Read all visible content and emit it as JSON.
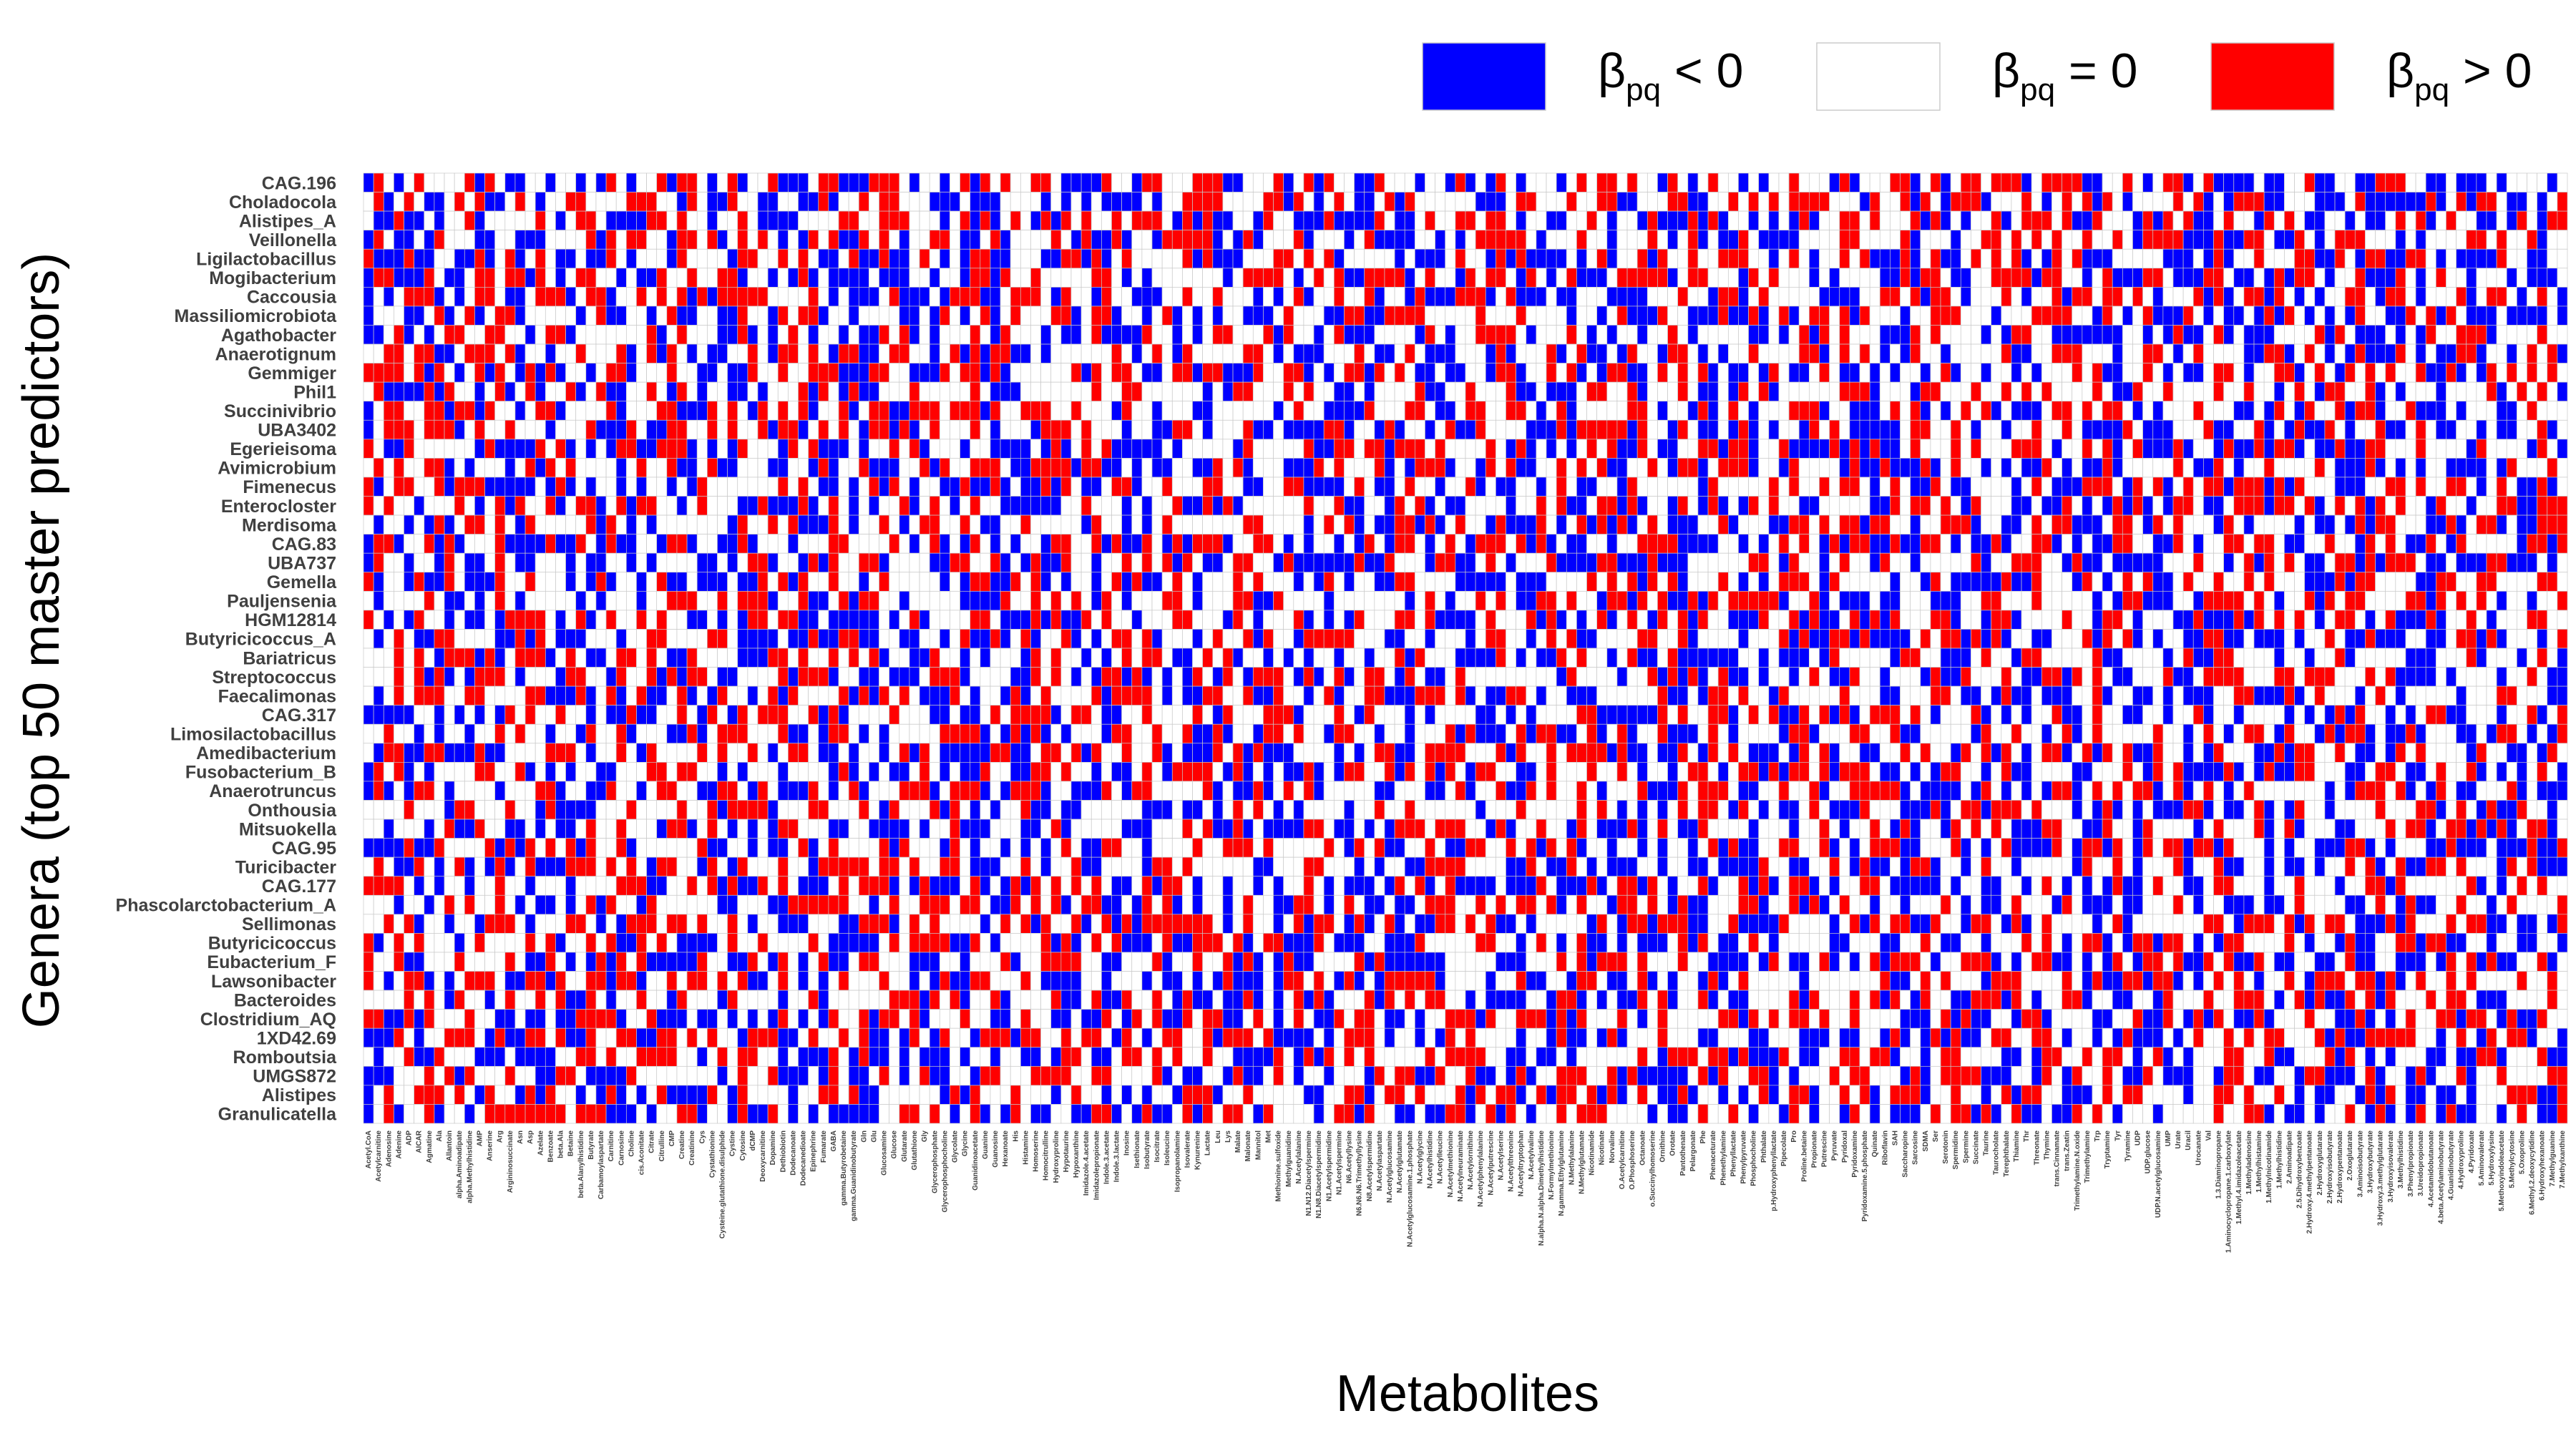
{
  "chart_data": {
    "type": "heatmap",
    "title": "",
    "xlabel": "Metabolites",
    "ylabel": "Genera (top 50 master predictors)",
    "legend": [
      {
        "symbol": "β",
        "sub": "pq",
        "rel": " < 0",
        "value": -1,
        "color": "#0000ff"
      },
      {
        "symbol": "β",
        "sub": "pq",
        "rel": " = 0",
        "value": 0,
        "color": "#ffffff"
      },
      {
        "symbol": "β",
        "sub": "pq",
        "rel": " > 0",
        "value": 1,
        "color": "#ff0000"
      }
    ],
    "legend_position": "top-right",
    "grid": true,
    "rows": [
      "CAG.196",
      "Choladocola",
      "Alistipes_A",
      "Veillonella",
      "Ligilactobacillus",
      "Mogibacterium",
      "Caccousia",
      "Massiliomicrobiota",
      "Agathobacter",
      "Anaerotignum",
      "Gemmiger",
      "Phil1",
      "Succinivibrio",
      "UBA3402",
      "Egerieisoma",
      "Avimicrobium",
      "Fimenecus",
      "Enterocloster",
      "Merdisoma",
      "CAG.83",
      "UBA737",
      "Gemella",
      "Pauljensenia",
      "HGM12814",
      "Butyricicoccus_A",
      "Bariatricus",
      "Streptococcus",
      "Faecalimonas",
      "CAG.317",
      "Limosilactobacillus",
      "Amedibacterium",
      "Fusobacterium_B",
      "Anaerotruncus",
      "Onthousia",
      "Mitsuokella",
      "CAG.95",
      "Turicibacter",
      "CAG.177",
      "Phascolarctobacterium_A",
      "Sellimonas",
      "Butyricicoccus",
      "Eubacterium_F",
      "Lawsonibacter",
      "Bacteroides",
      "Clostridium_AQ",
      "1XD42.69",
      "Romboutsia",
      "UMGS872",
      "Alistipes",
      "Granulicatella"
    ],
    "columns": [
      "Acetyl.CoA",
      "Acetylcarnitine",
      "Adenosine",
      "Adenine",
      "ADP",
      "AICAR",
      "Agmatine",
      "Ala",
      "Allantoin",
      "alpha.Aminoadipate",
      "alpha.Methylhistidine",
      "AMP",
      "Anserine",
      "Arg",
      "Argininosuccinate",
      "Asn",
      "Asp",
      "Azelate",
      "Benzoate",
      "beta.Ala",
      "Betaine",
      "beta.Alanylhistidine",
      "Butyrate",
      "Carbamoylaspartate",
      "Carnitine",
      "Carnosine",
      "Choline",
      "cis.Aconitate",
      "Citrate",
      "Citrulline",
      "CMP",
      "Creatine",
      "Creatinine",
      "Cys",
      "Cystathionine",
      "Cysteine.glutathione.disulphide",
      "Cystine",
      "Cytosine",
      "dCMP",
      "Deoxycarnitine",
      "Dopamine",
      "Dethiobiotin",
      "Dodecanoate",
      "Dodecanedioate",
      "Epinephrine",
      "Fumarate",
      "GABA",
      "gamma.Butyrobetaine",
      "gamma.Guanidinobutyrate",
      "Gln",
      "Glu",
      "Glucosamine",
      "Glucose",
      "Glutarate",
      "Glutathione",
      "Gly",
      "Glycerophosphate",
      "Glycerophosphocholine",
      "Glycolate",
      "Glycine",
      "Guanidinoacetate",
      "Guanine",
      "Guanosine",
      "Hexanoate",
      "His",
      "Histamine",
      "Homoserine",
      "Homocitrulline",
      "Hydroxyproline",
      "Hypotaurine",
      "Hypoxanthine",
      "Imidazole.4.acetate",
      "Imidazolepropionate",
      "Indole.3.acetate",
      "Indole.3.lactate",
      "Inosine",
      "Isethionate",
      "Isobutyrate",
      "Isocitrate",
      "Isoleucine",
      "Isopropanolamine",
      "Isovalerate",
      "Kynurenine",
      "Lactate",
      "Leu",
      "Lys",
      "Malate",
      "Malonate",
      "Mannitol",
      "Met",
      "Methionine.sulfoxide",
      "Methylguanidine",
      "N.Acetylalanine",
      "N1.N12.Diacetylspermine",
      "N1.N8.Diacetylspermidine",
      "N1.Acetylspermidine",
      "N1.Acetylspermine",
      "N6.Acetyllysine",
      "N6.N6.N6.Trimethyllysine",
      "N8.Acetylspermidine",
      "N.Acetylaspartate",
      "N.Acetylglucosamine",
      "N.Acetylglutamate",
      "N.Acetylglucosamine.1.phosphate",
      "N.Acetylglycine",
      "N.Acetylhistidine",
      "N.Acetylleucine",
      "N.Acetylmethionine",
      "N.Acetylneuraminate",
      "N.Acetylornithine",
      "N.Acetylphenylalanine",
      "N.Acetylputrescine",
      "N.Acetylserine",
      "N.Acetylthreonine",
      "N.Acetyltryptophan",
      "N.Acetylvaline",
      "N.alpha.N.alpha.Dimethylhistidine",
      "N.Formylmethionine",
      "N.gamma.Ethylglutamine",
      "N.Methylalanine",
      "N.Methylglutamate",
      "Nicotinamide",
      "Nicotinate",
      "Norvaline",
      "O.Acetylcarnitine",
      "O.Phosphoserine",
      "Octanoate",
      "o.Succinylhomoserine",
      "Ornithine",
      "Orotate",
      "Pantothenate",
      "Pelargonate",
      "Phe",
      "Phenaceturate",
      "Phenethylamine",
      "Phenyllactate",
      "Phenylpyruvate",
      "Phosphocholine",
      "Phthalate",
      "p.Hydroxyphenyllactate",
      "Pipecolate",
      "Pro",
      "Proline.betaine",
      "Propionate",
      "Putrescine",
      "Pyruvate",
      "Pyridoxal",
      "Pyridoxamine",
      "Pyridoxamine.5.phosphate",
      "Quinate",
      "Riboflavin",
      "SAH",
      "Saccharopine",
      "Sarcosine",
      "SDMA",
      "Ser",
      "Serotonin",
      "Spermidine",
      "Spermine",
      "Succinate",
      "Taurine",
      "Taurocholate",
      "Terephthalate",
      "Thiamine",
      "Thr",
      "Threonate",
      "Thymine",
      "trans.Cinnamate",
      "trans.Zeatin",
      "Trimethylamine.N.oxide",
      "Trimethylamine",
      "Trp",
      "Tryptamine",
      "Tyr",
      "Tyramine",
      "UDP",
      "UDP.glucose",
      "UDP.N.acetylglucosamine",
      "UMP",
      "Urate",
      "Uracil",
      "Urocanate",
      "Val",
      "1.3.Diaminopropane",
      "1.Aminocyclopropane.1.carboxylate",
      "1.Methyl.4.imidazoleacetate",
      "1.Methyladenosine",
      "1.Methylhistamine",
      "1.Methylnicotinamide",
      "1.Methylhistidine",
      "2.Aminoadipate",
      "2.5.Dihydroxybenzoate",
      "2.Hydroxy.4.methylpentanoate",
      "2.Hydroxyglutarate",
      "2.Hydroxyisobutyrate",
      "2.Hydroxypentanoate",
      "2.Oxoglutarate",
      "3.Aminoisobutyrate",
      "3.Hydroxybutyrate",
      "3.Hydroxy.3.methylglutarate",
      "3.Hydroxyisovalerate",
      "3.Methylhistidine",
      "3.Phenylpropionate",
      "3.Ureidopropionate",
      "4.Acetamidobutanoate",
      "4.beta.Acetylaminobutyrate",
      "4.Guanidinobutyrate",
      "4.Hydroxyproline",
      "4.Pyridoxate",
      "5.Aminovalerate",
      "5.Hydroxylysine",
      "5.Methoxyindoleacetate",
      "5.Methylcytosine",
      "5.Oxoproline",
      "6.Methyl.2.deoxycytidine",
      "6.Hydroxyhexanoate",
      "7.Methylguanine",
      "7.Methylxanthine"
    ],
    "values": []
  }
}
